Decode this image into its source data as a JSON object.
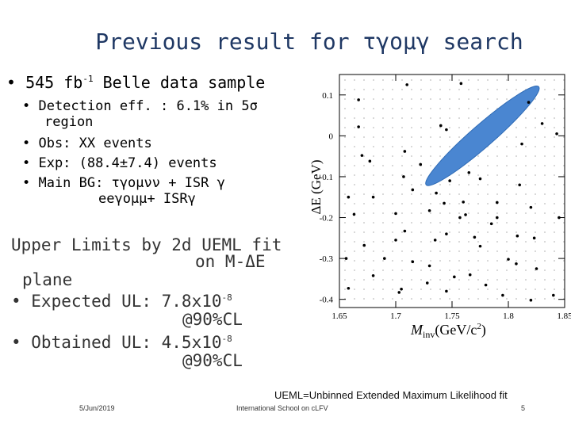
{
  "title": "Previous result for τγομγ search",
  "bullet1": "• 545 fb",
  "bullet1_sup": "-1",
  "bullet1_tail": " Belle data sample",
  "sub1_line1": "• Detection eff. : 6.1% in 5σ",
  "sub1_line2": "region",
  "sub2": "• Obs: XX events",
  "sub3": "• Exp: (88.4±7.4) events",
  "sub4_line1": "• Main BG: τγομνν + ISR γ",
  "sub4_line2": "eeγομμ+ ISRγ",
  "upper_line1": "Upper Limits by 2d UEML fit",
  "upper_line2": "on M-ΔE",
  "upper_line3": "plane",
  "expected_label": "• Expected UL: 7.8x10",
  "expected_sup": "-8",
  "expected_cl": "@90%CL",
  "obtained_label": "• Obtained UL: 4.5x10",
  "obtained_sup": "-8",
  "obtained_cl": "@90%CL",
  "ueml_note": "UEML=Unbinned Extended Maximum Likelihood fit",
  "footer_date": "5/Jun/2019",
  "footer_school": "International School on cLFV",
  "footer_page": "5",
  "chart_data": {
    "type": "scatter",
    "xlabel": "M",
    "xlabel_sub": "inv",
    "xlabel_unit": "(GeV/c",
    "xlabel_unit_sup": "2",
    "xlabel_unit_end": ")",
    "ylabel": "ΔE (GeV)",
    "xlim": [
      1.65,
      1.85
    ],
    "ylim": [
      -0.42,
      0.15
    ],
    "xticks": [
      "1.65",
      "1.7",
      "1.75",
      "1.8",
      "1.85"
    ],
    "xtick_values": [
      1.65,
      1.7,
      1.75,
      1.8,
      1.85
    ],
    "yticks": [
      "0.1",
      "0",
      "-0.1",
      "-0.2",
      "-0.3",
      "-0.4"
    ],
    "ytick_values": [
      0.1,
      0.0,
      -0.1,
      -0.2,
      -0.3,
      -0.4
    ],
    "signal_region": {
      "shape": "ellipse",
      "center": [
        1.777,
        0.0
      ],
      "semi_major_data": [
        0.05,
        0.12
      ],
      "semi_minor_data": [
        0.008,
        -0.016
      ],
      "color": "#4a86d1"
    },
    "points": [
      [
        1.71,
        0.125
      ],
      [
        1.758,
        0.128
      ],
      [
        1.667,
        0.088
      ],
      [
        1.74,
        0.025
      ],
      [
        1.745,
        0.015
      ],
      [
        1.667,
        0.022
      ],
      [
        1.818,
        0.082
      ],
      [
        1.83,
        0.03
      ],
      [
        1.843,
        0.005
      ],
      [
        1.812,
        -0.02
      ],
      [
        1.708,
        -0.038
      ],
      [
        1.67,
        -0.048
      ],
      [
        1.677,
        -0.062
      ],
      [
        1.722,
        -0.07
      ],
      [
        1.707,
        -0.1
      ],
      [
        1.748,
        -0.11
      ],
      [
        1.765,
        -0.09
      ],
      [
        1.775,
        -0.105
      ],
      [
        1.81,
        -0.12
      ],
      [
        1.715,
        -0.132
      ],
      [
        1.736,
        -0.14
      ],
      [
        1.68,
        -0.15
      ],
      [
        1.658,
        -0.15
      ],
      [
        1.743,
        -0.165
      ],
      [
        1.76,
        -0.162
      ],
      [
        1.79,
        -0.163
      ],
      [
        1.82,
        -0.175
      ],
      [
        1.73,
        -0.183
      ],
      [
        1.7,
        -0.19
      ],
      [
        1.762,
        -0.193
      ],
      [
        1.757,
        -0.2
      ],
      [
        1.79,
        -0.2
      ],
      [
        1.845,
        -0.2
      ],
      [
        1.785,
        -0.215
      ],
      [
        1.708,
        -0.233
      ],
      [
        1.745,
        -0.24
      ],
      [
        1.808,
        -0.245
      ],
      [
        1.77,
        -0.248
      ],
      [
        1.823,
        -0.25
      ],
      [
        1.672,
        -0.268
      ],
      [
        1.735,
        -0.255
      ],
      [
        1.775,
        -0.27
      ],
      [
        1.69,
        -0.3
      ],
      [
        1.656,
        -0.3
      ],
      [
        1.715,
        -0.308
      ],
      [
        1.73,
        -0.318
      ],
      [
        1.8,
        -0.302
      ],
      [
        1.807,
        -0.313
      ],
      [
        1.825,
        -0.325
      ],
      [
        1.766,
        -0.34
      ],
      [
        1.752,
        -0.345
      ],
      [
        1.78,
        -0.365
      ],
      [
        1.658,
        -0.373
      ],
      [
        1.703,
        -0.383
      ],
      [
        1.745,
        -0.38
      ],
      [
        1.795,
        -0.39
      ],
      [
        1.705,
        -0.375
      ],
      [
        1.82,
        -0.402
      ],
      [
        1.84,
        -0.39
      ],
      [
        1.728,
        -0.36
      ],
      [
        1.68,
        -0.342
      ],
      [
        1.663,
        -0.192
      ],
      [
        1.7,
        -0.255
      ]
    ]
  }
}
